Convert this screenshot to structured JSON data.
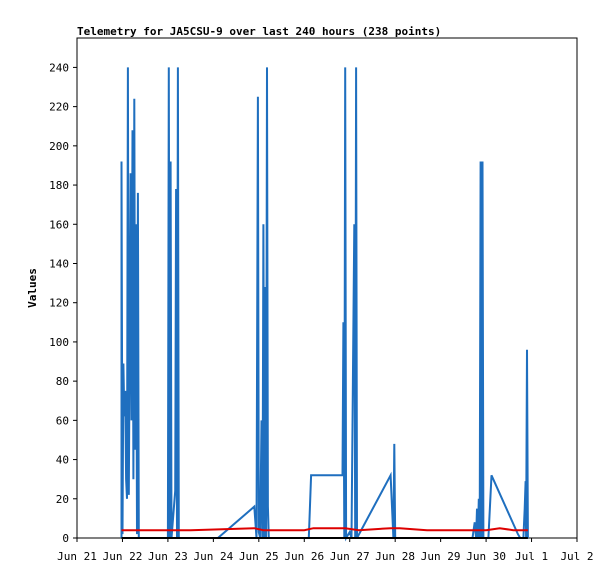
{
  "chart_data": {
    "type": "line",
    "title": "Telemetry for JA5CSU-9 over last 240 hours (238 points)",
    "ylabel": "Values",
    "xlabel": "",
    "xlim": [
      "Jun 21",
      "Jul 2"
    ],
    "ylim": [
      0,
      255
    ],
    "y_ticks": [
      0,
      20,
      40,
      60,
      80,
      100,
      120,
      140,
      160,
      180,
      200,
      220,
      240
    ],
    "x_ticks": [
      "Jun 21",
      "Jun 22",
      "Jun 23",
      "Jun 24",
      "Jun 25",
      "Jun 26",
      "Jun 27",
      "Jun 28",
      "Jun 29",
      "Jun 30",
      "Jul 1",
      "Jul 2"
    ],
    "grid": false,
    "legend": "none",
    "series": [
      {
        "color": "#1f6fbf",
        "points": [
          [
            0.98,
            0
          ],
          [
            0.98,
            192
          ],
          [
            1.0,
            2
          ],
          [
            1.02,
            89
          ],
          [
            1.04,
            62
          ],
          [
            1.06,
            75
          ],
          [
            1.08,
            30
          ],
          [
            1.1,
            20
          ],
          [
            1.12,
            240
          ],
          [
            1.14,
            22
          ],
          [
            1.16,
            100
          ],
          [
            1.18,
            186
          ],
          [
            1.2,
            60
          ],
          [
            1.22,
            208
          ],
          [
            1.24,
            30
          ],
          [
            1.26,
            224
          ],
          [
            1.28,
            45
          ],
          [
            1.3,
            160
          ],
          [
            1.32,
            2
          ],
          [
            1.34,
            176
          ],
          [
            1.36,
            0
          ],
          [
            2.0,
            0
          ],
          [
            2.02,
            240
          ],
          [
            2.04,
            0
          ],
          [
            2.06,
            192
          ],
          [
            2.08,
            0
          ],
          [
            2.16,
            24
          ],
          [
            2.18,
            178
          ],
          [
            2.2,
            0
          ],
          [
            2.22,
            240
          ],
          [
            2.24,
            0
          ],
          [
            3.1,
            0
          ],
          [
            3.9,
            16
          ],
          [
            3.95,
            0
          ],
          [
            3.98,
            225
          ],
          [
            4.0,
            3
          ],
          [
            4.03,
            0
          ],
          [
            4.06,
            60
          ],
          [
            4.08,
            0
          ],
          [
            4.1,
            160
          ],
          [
            4.12,
            0
          ],
          [
            4.14,
            128
          ],
          [
            4.16,
            0
          ],
          [
            4.18,
            240
          ],
          [
            4.2,
            16
          ],
          [
            4.22,
            0
          ],
          [
            5.1,
            0
          ],
          [
            5.15,
            32
          ],
          [
            5.84,
            32
          ],
          [
            5.86,
            110
          ],
          [
            5.88,
            0
          ],
          [
            5.9,
            240
          ],
          [
            5.92,
            0
          ],
          [
            6.0,
            3
          ],
          [
            6.04,
            0
          ],
          [
            6.1,
            160
          ],
          [
            6.12,
            0
          ],
          [
            6.14,
            240
          ],
          [
            6.16,
            0
          ],
          [
            6.9,
            32
          ],
          [
            6.96,
            0
          ],
          [
            6.98,
            48
          ],
          [
            7.0,
            0
          ],
          [
            8.7,
            0
          ],
          [
            8.75,
            8
          ],
          [
            8.78,
            0
          ],
          [
            8.8,
            15
          ],
          [
            8.82,
            0
          ],
          [
            8.84,
            20
          ],
          [
            8.86,
            0
          ],
          [
            8.88,
            192
          ],
          [
            8.9,
            0
          ],
          [
            8.92,
            192
          ],
          [
            8.94,
            0
          ],
          [
            9.05,
            0
          ],
          [
            9.12,
            32
          ],
          [
            9.7,
            2
          ],
          [
            9.75,
            0
          ],
          [
            9.82,
            0
          ],
          [
            9.85,
            15
          ],
          [
            9.87,
            29
          ],
          [
            9.88,
            0
          ],
          [
            9.9,
            96
          ],
          [
            9.92,
            0
          ]
        ]
      },
      {
        "color": "#dd0000",
        "points": [
          [
            0.98,
            4
          ],
          [
            1.5,
            4
          ],
          [
            2.5,
            4
          ],
          [
            3.9,
            5
          ],
          [
            4.1,
            4
          ],
          [
            5.0,
            4
          ],
          [
            5.2,
            5
          ],
          [
            5.9,
            5
          ],
          [
            6.2,
            4
          ],
          [
            6.9,
            5
          ],
          [
            7.1,
            5
          ],
          [
            7.7,
            4
          ],
          [
            8.5,
            4
          ],
          [
            9.0,
            4
          ],
          [
            9.3,
            5
          ],
          [
            9.6,
            4
          ],
          [
            9.8,
            4
          ],
          [
            9.92,
            4
          ]
        ]
      },
      {
        "color": "#000000",
        "points": [
          [
            0.98,
            0
          ],
          [
            9.92,
            0
          ]
        ]
      }
    ]
  }
}
